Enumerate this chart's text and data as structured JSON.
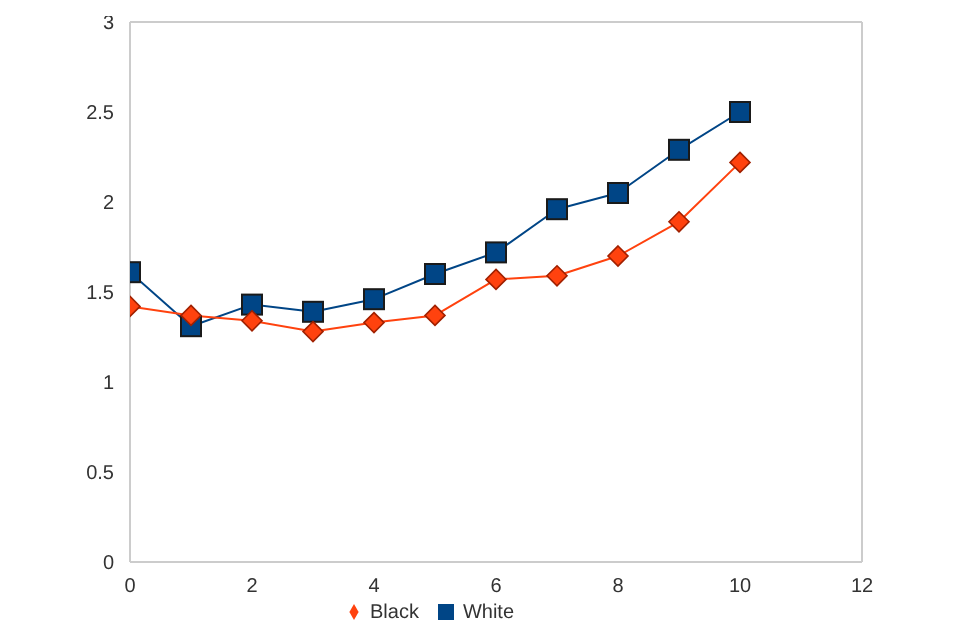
{
  "chart_data": {
    "type": "line",
    "x": [
      0,
      1,
      2,
      3,
      4,
      5,
      6,
      7,
      8,
      9,
      10
    ],
    "series": [
      {
        "name": "White",
        "color": "#004586",
        "marker": "square",
        "values": [
          1.61,
          1.31,
          1.43,
          1.39,
          1.46,
          1.6,
          1.72,
          1.96,
          2.05,
          2.29,
          2.5
        ]
      },
      {
        "name": "Black",
        "color": "#ff420e",
        "marker": "diamond",
        "values": [
          1.42,
          1.37,
          1.34,
          1.28,
          1.33,
          1.37,
          1.57,
          1.59,
          1.7,
          1.89,
          2.22
        ]
      }
    ],
    "xlim": [
      0,
      12
    ],
    "xticks": [
      0,
      2,
      4,
      6,
      8,
      10,
      12
    ],
    "ylim": [
      0,
      3
    ],
    "yticks": [
      0,
      0.5,
      1,
      1.5,
      2,
      2.5,
      3
    ],
    "grid": false,
    "legend": "bottom",
    "line_style": "solid"
  }
}
